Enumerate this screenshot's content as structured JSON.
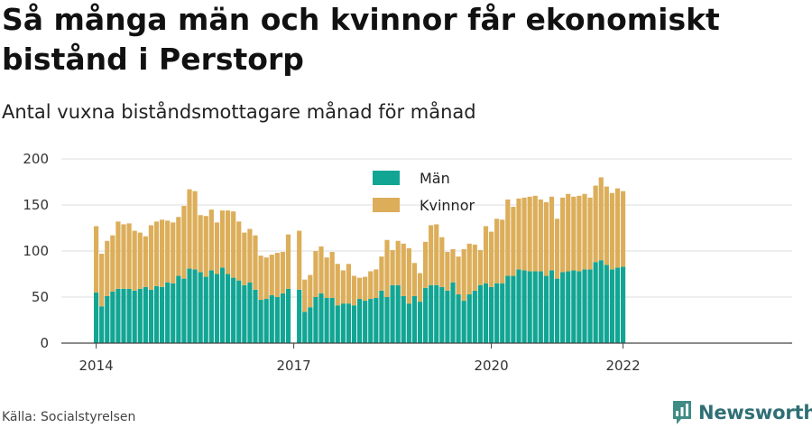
{
  "header": {
    "title": "Så många män och kvinnor får ekonomiskt bistånd i Perstorp",
    "subtitle": "Antal vuxna biståndsmottagare månad för månad"
  },
  "footer": {
    "source": "Källa: Socialstyrelsen",
    "brand": "Newsworthy"
  },
  "colors": {
    "men": "#12a594",
    "women": "#dcae5a",
    "grid": "#dddddd",
    "axis": "#444444",
    "brand": "#2f6f75"
  },
  "chart_data": {
    "type": "bar",
    "stacked": true,
    "x_start": "2014-01",
    "x_end": "2022-01",
    "ylim": [
      0,
      200
    ],
    "yticks": [
      0,
      50,
      100,
      150,
      200
    ],
    "xticks": [
      "2014",
      "2017",
      "2020",
      "2022"
    ],
    "grid": true,
    "legend_position": "top-center",
    "months": [
      "2014-01",
      "2014-02",
      "2014-03",
      "2014-04",
      "2014-05",
      "2014-06",
      "2014-07",
      "2014-08",
      "2014-09",
      "2014-10",
      "2014-11",
      "2014-12",
      "2015-01",
      "2015-02",
      "2015-03",
      "2015-04",
      "2015-05",
      "2015-06",
      "2015-07",
      "2015-08",
      "2015-09",
      "2015-10",
      "2015-11",
      "2015-12",
      "2016-01",
      "2016-02",
      "2016-03",
      "2016-04",
      "2016-05",
      "2016-06",
      "2016-07",
      "2016-08",
      "2016-09",
      "2016-10",
      "2016-11",
      "2016-12",
      "2017-01",
      "2017-02",
      "2017-03",
      "2017-04",
      "2017-05",
      "2017-06",
      "2017-07",
      "2017-08",
      "2017-09",
      "2017-10",
      "2017-11",
      "2017-12",
      "2018-01",
      "2018-02",
      "2018-03",
      "2018-04",
      "2018-05",
      "2018-06",
      "2018-07",
      "2018-08",
      "2018-09",
      "2018-10",
      "2018-11",
      "2018-12",
      "2019-01",
      "2019-02",
      "2019-03",
      "2019-04",
      "2019-05",
      "2019-06",
      "2019-07",
      "2019-08",
      "2019-09",
      "2019-10",
      "2019-11",
      "2019-12",
      "2020-01",
      "2020-02",
      "2020-03",
      "2020-04",
      "2020-05",
      "2020-06",
      "2020-07",
      "2020-08",
      "2020-09",
      "2020-10",
      "2020-11",
      "2020-12",
      "2021-01",
      "2021-02",
      "2021-03",
      "2021-04",
      "2021-05",
      "2021-06",
      "2021-07",
      "2021-08",
      "2021-09",
      "2021-10",
      "2021-11",
      "2021-12",
      "2022-01"
    ],
    "series": [
      {
        "name": "Män",
        "values": [
          55,
          40,
          51,
          56,
          59,
          59,
          59,
          57,
          59,
          61,
          58,
          62,
          61,
          66,
          65,
          73,
          70,
          81,
          80,
          77,
          72,
          79,
          75,
          82,
          75,
          71,
          68,
          63,
          66,
          58,
          47,
          48,
          52,
          50,
          54,
          59,
          null,
          58,
          34,
          39,
          50,
          54,
          49,
          49,
          41,
          43,
          43,
          41,
          48,
          46,
          48,
          49,
          57,
          50,
          63,
          63,
          51,
          43,
          51,
          45,
          60,
          63,
          63,
          61,
          57,
          66,
          53,
          46,
          53,
          57,
          63,
          65,
          61,
          65,
          65,
          73,
          73,
          80,
          79,
          78,
          78,
          78,
          73,
          79,
          70,
          77,
          78,
          79,
          78,
          80,
          80,
          88,
          90,
          85,
          80,
          82,
          83
        ]
      },
      {
        "name": "Kvinnor",
        "values": [
          72,
          57,
          60,
          61,
          73,
          70,
          71,
          65,
          61,
          55,
          70,
          70,
          73,
          67,
          66,
          64,
          79,
          86,
          85,
          62,
          66,
          66,
          56,
          62,
          69,
          72,
          64,
          57,
          58,
          59,
          48,
          45,
          44,
          48,
          45,
          59,
          null,
          64,
          35,
          35,
          50,
          51,
          44,
          50,
          45,
          36,
          43,
          32,
          23,
          26,
          30,
          31,
          37,
          62,
          38,
          48,
          57,
          60,
          36,
          31,
          50,
          65,
          66,
          54,
          42,
          36,
          41,
          56,
          55,
          50,
          38,
          62,
          60,
          70,
          69,
          83,
          75,
          77,
          79,
          81,
          82,
          78,
          80,
          80,
          65,
          81,
          84,
          80,
          82,
          82,
          78,
          83,
          90,
          85,
          83,
          86,
          82
        ]
      }
    ]
  }
}
